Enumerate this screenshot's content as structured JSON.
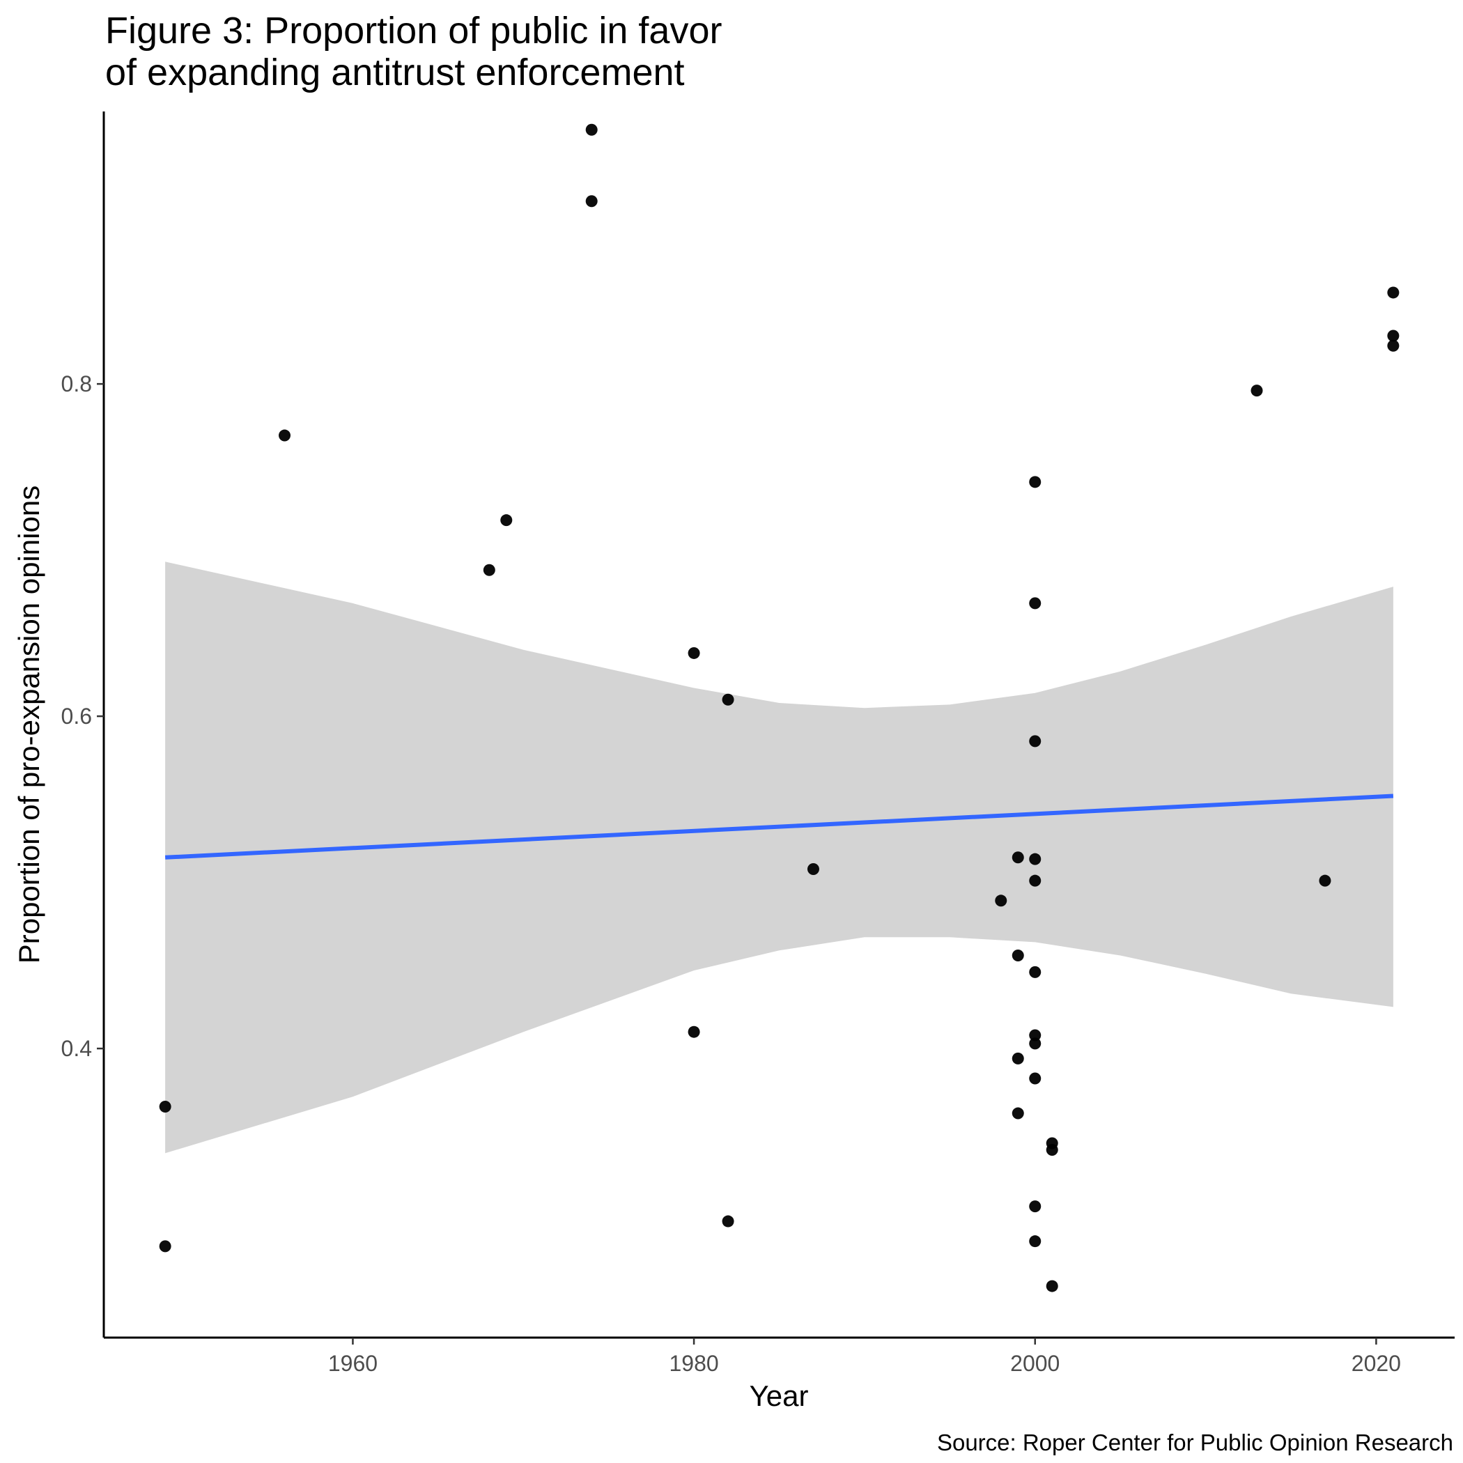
{
  "chart_data": {
    "type": "scatter",
    "title_lines": [
      "Figure 3: Proportion of public in favor",
      "of expanding antitrust enforcement"
    ],
    "xlabel": "Year",
    "ylabel": "Proportion of pro-expansion opinions",
    "caption": "Source: Roper Center for Public Opinion Research",
    "xlim": [
      1945.4,
      2024.6
    ],
    "ylim": [
      0.226,
      0.964
    ],
    "x_ticks": [
      1960,
      1980,
      2000,
      2020
    ],
    "y_ticks": [
      0.4,
      0.6,
      0.8
    ],
    "x_tick_labels": [
      "1960",
      "1980",
      "2000",
      "2020"
    ],
    "y_tick_labels": [
      "0.4",
      "0.6",
      "0.8"
    ],
    "grid": false,
    "legend": "none",
    "point_color": "#000000",
    "line_color": "#3366FF",
    "ribbon_color": "#D4D4D4",
    "points": [
      {
        "x": 1949,
        "y": 0.365
      },
      {
        "x": 1949,
        "y": 0.281
      },
      {
        "x": 1956,
        "y": 0.769
      },
      {
        "x": 1968,
        "y": 0.688
      },
      {
        "x": 1969,
        "y": 0.718
      },
      {
        "x": 1974,
        "y": 0.953
      },
      {
        "x": 1974,
        "y": 0.91
      },
      {
        "x": 1980,
        "y": 0.638
      },
      {
        "x": 1980,
        "y": 0.41
      },
      {
        "x": 1982,
        "y": 0.61
      },
      {
        "x": 1982,
        "y": 0.296
      },
      {
        "x": 1987,
        "y": 0.508
      },
      {
        "x": 1998,
        "y": 0.489
      },
      {
        "x": 1999,
        "y": 0.515
      },
      {
        "x": 1999,
        "y": 0.456
      },
      {
        "x": 1999,
        "y": 0.394
      },
      {
        "x": 1999,
        "y": 0.361
      },
      {
        "x": 2000,
        "y": 0.741
      },
      {
        "x": 2000,
        "y": 0.668
      },
      {
        "x": 2000,
        "y": 0.585
      },
      {
        "x": 2000,
        "y": 0.514
      },
      {
        "x": 2000,
        "y": 0.501
      },
      {
        "x": 2000,
        "y": 0.446
      },
      {
        "x": 2000,
        "y": 0.408
      },
      {
        "x": 2000,
        "y": 0.403
      },
      {
        "x": 2000,
        "y": 0.382
      },
      {
        "x": 2000,
        "y": 0.305
      },
      {
        "x": 2000,
        "y": 0.284
      },
      {
        "x": 2001,
        "y": 0.343
      },
      {
        "x": 2001,
        "y": 0.339
      },
      {
        "x": 2001,
        "y": 0.257
      },
      {
        "x": 2013,
        "y": 0.796
      },
      {
        "x": 2017,
        "y": 0.501
      },
      {
        "x": 2021,
        "y": 0.855
      },
      {
        "x": 2021,
        "y": 0.829
      },
      {
        "x": 2021,
        "y": 0.823
      }
    ],
    "trend_line": {
      "x": [
        1949,
        2021
      ],
      "y": [
        0.515,
        0.552
      ]
    },
    "confidence_band": {
      "x": [
        1949,
        1960,
        1970,
        1980,
        1985,
        1990,
        1995,
        2000,
        2005,
        2010,
        2015,
        2021
      ],
      "upper": [
        0.693,
        0.668,
        0.64,
        0.617,
        0.608,
        0.605,
        0.607,
        0.614,
        0.627,
        0.643,
        0.66,
        0.678
      ],
      "lower": [
        0.337,
        0.371,
        0.41,
        0.447,
        0.459,
        0.467,
        0.467,
        0.464,
        0.456,
        0.445,
        0.433,
        0.425
      ]
    }
  }
}
